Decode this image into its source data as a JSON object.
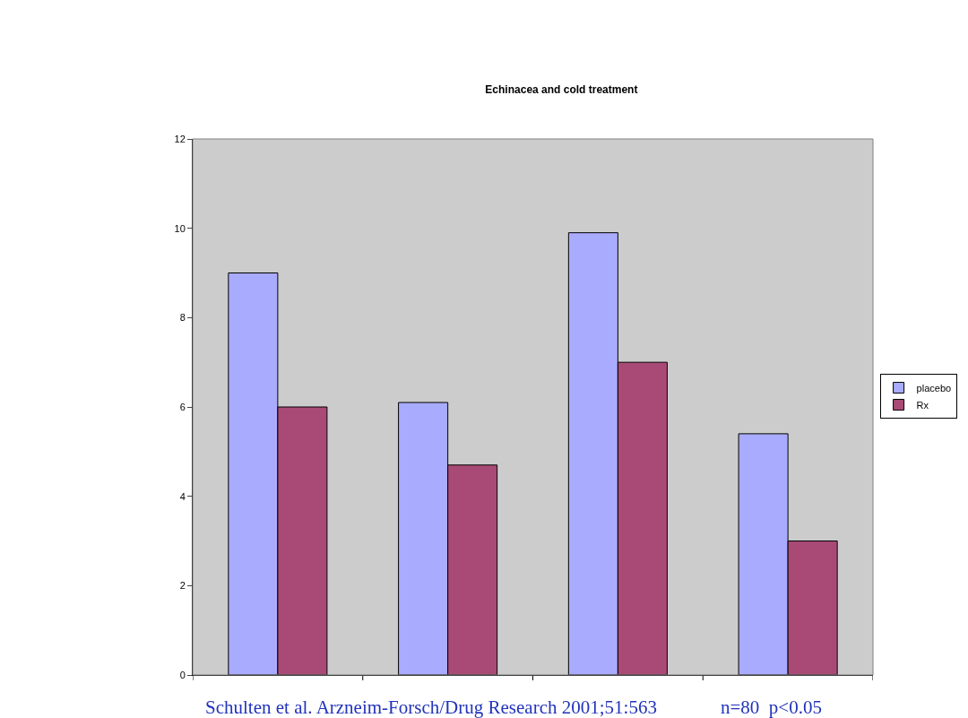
{
  "chart_data": {
    "type": "bar",
    "title": "Echinacea and cold treatment",
    "categories": [
      null,
      null,
      null,
      null
    ],
    "series": [
      {
        "name": "placebo",
        "color": "#a9abff",
        "values": [
          9.0,
          6.1,
          9.9,
          5.4
        ]
      },
      {
        "name": "Rx",
        "color": "#a94a76",
        "values": [
          6.0,
          4.7,
          7.0,
          3.0
        ]
      }
    ],
    "ylim": [
      0,
      12
    ],
    "yticks": [
      0,
      2,
      4,
      6,
      8,
      10,
      12
    ],
    "grid": false,
    "legend": "right",
    "annotations": [
      "Schulten et al. Arzneim-Forsch/Drug Research 2001;51:563",
      "n=80  p<0.05"
    ]
  }
}
